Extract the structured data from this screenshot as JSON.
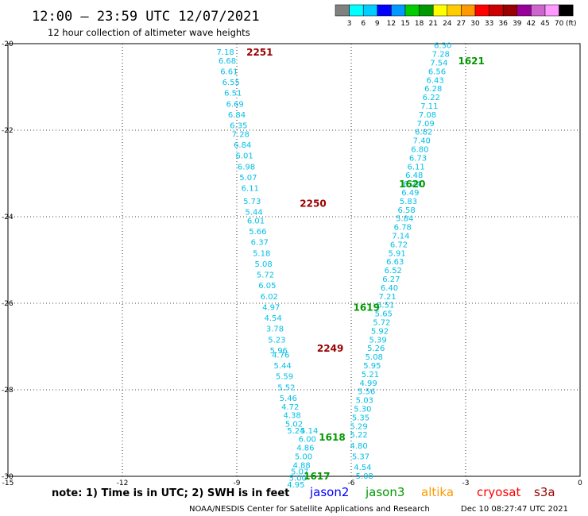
{
  "header": {
    "title": "12:00 – 23:59 UTC 12/07/2021",
    "subtitle": "12 hour collection of altimeter wave heights"
  },
  "colorbar": {
    "colors": [
      "#808080",
      "#00ffff",
      "#00ccff",
      "#0000ff",
      "#0099ff",
      "#00cc00",
      "#009900",
      "#ffff00",
      "#ffcc00",
      "#ff9900",
      "#ff0000",
      "#cc0000",
      "#990000",
      "#990099",
      "#cc66cc",
      "#ff99ff",
      "#000000"
    ],
    "ticks": [
      "3",
      "6",
      "9",
      "12",
      "15",
      "18",
      "21",
      "24",
      "27",
      "30",
      "33",
      "36",
      "39",
      "42",
      "45",
      "70"
    ],
    "unit": "(ft)"
  },
  "note": "note:  1) Time is in UTC; 2) SWH is in feet",
  "satellites": [
    {
      "name": "jason2",
      "color": "#0000ff"
    },
    {
      "name": "jason3",
      "color": "#009900"
    },
    {
      "name": "altika",
      "color": "#ff9900"
    },
    {
      "name": "cryosat",
      "color": "#ff0000"
    },
    {
      "name": "s3a",
      "color": "#990000"
    }
  ],
  "footer": {
    "left": "NOAA/NESDIS Center for Satellite Applications and Research",
    "right": "Dec 10 08:27:47 UTC 2021"
  },
  "chart_data": {
    "type": "scatter",
    "xlim": [
      -15,
      0
    ],
    "ylim": [
      -30,
      -20
    ],
    "xticks": [
      "-15",
      "-12",
      "-9",
      "-6",
      "-3",
      "0"
    ],
    "yticks": [
      "-20",
      "-22",
      "-24",
      "-26",
      "-28",
      "-30"
    ],
    "grid": true,
    "value_color": "#00bfe6",
    "tracks": [
      {
        "satellite": "s3a",
        "color": "#990000",
        "points": [
          [
            -9.3,
            -20.2,
            "7.18"
          ],
          [
            -9.25,
            -20.4,
            "6.68"
          ],
          [
            -9.2,
            -20.65,
            "6.61"
          ],
          [
            -9.15,
            -20.9,
            "6.55"
          ],
          [
            -9.1,
            -21.15,
            "6.51"
          ],
          [
            -9.05,
            -21.4,
            "6.69"
          ],
          [
            -9.0,
            -21.65,
            "6.84"
          ],
          [
            -8.95,
            -21.9,
            "6.35"
          ],
          [
            -8.9,
            -22.1,
            "7.28"
          ],
          [
            -8.85,
            -22.35,
            "6.84"
          ],
          [
            -8.8,
            -22.6,
            "6.01"
          ],
          [
            -8.75,
            -22.85,
            "6.98"
          ],
          [
            -8.7,
            -23.1,
            "5.07"
          ],
          [
            -8.65,
            -23.35,
            "6.11"
          ],
          [
            -8.6,
            -23.65,
            "5.73"
          ],
          [
            -8.55,
            -23.9,
            "5.44"
          ],
          [
            -8.5,
            -24.1,
            "6.01"
          ],
          [
            -8.45,
            -24.35,
            "5.66"
          ],
          [
            -8.4,
            -24.6,
            "6.37"
          ],
          [
            -8.35,
            -24.85,
            "5.18"
          ],
          [
            -8.3,
            -25.1,
            "5.08"
          ],
          [
            -8.25,
            -25.35,
            "5.72"
          ],
          [
            -8.2,
            -25.6,
            "6.05"
          ],
          [
            -8.15,
            -25.85,
            "6.02"
          ],
          [
            -8.1,
            -26.1,
            "4.97"
          ],
          [
            -8.05,
            -26.35,
            "4.54"
          ],
          [
            -8.0,
            -26.6,
            "3.78"
          ],
          [
            -7.95,
            -26.85,
            "5.23"
          ],
          [
            -7.9,
            -27.1,
            "5.96"
          ],
          [
            -7.85,
            -27.2,
            "4.76"
          ],
          [
            -7.8,
            -27.45,
            "5.44"
          ],
          [
            -7.75,
            -27.7,
            "5.59"
          ],
          [
            -7.7,
            -27.95,
            "5.52"
          ],
          [
            -7.65,
            -28.2,
            "5.46"
          ],
          [
            -7.6,
            -28.4,
            "4.72"
          ],
          [
            -7.55,
            -28.6,
            "4.38"
          ],
          [
            -7.5,
            -28.8,
            "5.02"
          ],
          [
            -7.45,
            -28.95,
            "5.24"
          ]
        ]
      },
      {
        "satellite": "jason3",
        "color": "#009900",
        "points": [
          [
            -3.6,
            -20.05,
            "6.30"
          ],
          [
            -3.65,
            -20.25,
            "7.28"
          ],
          [
            -3.7,
            -20.45,
            "7.54"
          ],
          [
            -3.75,
            -20.65,
            "6.56"
          ],
          [
            -3.8,
            -20.85,
            "6.43"
          ],
          [
            -3.85,
            -21.05,
            "6.28"
          ],
          [
            -3.9,
            -21.25,
            "6.22"
          ],
          [
            -3.95,
            -21.45,
            "7.11"
          ],
          [
            -4.0,
            -21.65,
            "7.08"
          ],
          [
            -4.05,
            -21.85,
            "7.09"
          ],
          [
            -4.1,
            -22.05,
            "6.82"
          ],
          [
            -4.15,
            -22.25,
            "7.40"
          ],
          [
            -4.2,
            -22.45,
            "6.80"
          ],
          [
            -4.25,
            -22.65,
            "6.73"
          ],
          [
            -4.3,
            -22.85,
            "6.11"
          ],
          [
            -4.35,
            -23.05,
            "6.48"
          ],
          [
            -4.4,
            -23.25,
            "6.24"
          ],
          [
            -4.45,
            -23.45,
            "6.49"
          ],
          [
            -4.5,
            -23.65,
            "5.83"
          ],
          [
            -4.55,
            -23.85,
            "6.58"
          ],
          [
            -4.6,
            -24.05,
            "5.84"
          ],
          [
            -4.65,
            -24.25,
            "6.78"
          ],
          [
            -4.7,
            -24.45,
            "7.14"
          ],
          [
            -4.75,
            -24.65,
            "6.72"
          ],
          [
            -4.8,
            -24.85,
            "5.91"
          ],
          [
            -4.85,
            -25.05,
            "6.63"
          ],
          [
            -4.9,
            -25.25,
            "6.52"
          ],
          [
            -4.95,
            -25.45,
            "6.27"
          ],
          [
            -5.0,
            -25.65,
            "6.40"
          ],
          [
            -5.05,
            -25.85,
            "7.21"
          ],
          [
            -5.1,
            -26.05,
            "6.51"
          ],
          [
            -5.15,
            -26.25,
            "5.65"
          ],
          [
            -5.2,
            -26.45,
            "5.72"
          ],
          [
            -5.25,
            -26.65,
            "5.92"
          ],
          [
            -5.3,
            -26.85,
            "5.39"
          ],
          [
            -5.35,
            -27.05,
            "5.26"
          ],
          [
            -5.4,
            -27.25,
            "5.08"
          ],
          [
            -5.45,
            -27.45,
            "5.95"
          ],
          [
            -5.5,
            -27.65,
            "5.21"
          ],
          [
            -5.55,
            -27.85,
            "4.99"
          ],
          [
            -5.6,
            -28.05,
            "5.56"
          ],
          [
            -5.65,
            -28.25,
            "5.03"
          ],
          [
            -5.7,
            -28.45,
            "5.30"
          ],
          [
            -5.75,
            -28.65,
            "5.35"
          ],
          [
            -5.8,
            -28.85,
            "5.29"
          ],
          [
            -5.8,
            -29.05,
            "5.22"
          ],
          [
            -5.8,
            -29.3,
            "4.80"
          ],
          [
            -5.75,
            -29.55,
            "5.37"
          ],
          [
            -5.7,
            -29.8,
            "4.54"
          ],
          [
            -5.65,
            -30.0,
            "5.08"
          ]
        ]
      },
      {
        "satellite": "jason3",
        "color": "#009900",
        "points": [
          [
            -7.1,
            -28.95,
            "5.14"
          ],
          [
            -7.15,
            -29.15,
            "6.00"
          ],
          [
            -7.2,
            -29.35,
            "4.86"
          ],
          [
            -7.25,
            -29.55,
            "5.00"
          ],
          [
            -7.3,
            -29.75,
            "4.88"
          ],
          [
            -7.35,
            -29.9,
            "5.07"
          ],
          [
            -7.4,
            -30.05,
            "5.00"
          ],
          [
            -7.45,
            -30.2,
            "4.95"
          ]
        ]
      }
    ],
    "pass_labels": [
      {
        "text": "2251",
        "x": -8.4,
        "y": -20.2,
        "color": "#990000"
      },
      {
        "text": "2250",
        "x": -7.0,
        "y": -23.7,
        "color": "#990000"
      },
      {
        "text": "2249",
        "x": -6.55,
        "y": -27.05,
        "color": "#990000"
      },
      {
        "text": "1621",
        "x": -2.85,
        "y": -20.4,
        "color": "#009900"
      },
      {
        "text": "1620",
        "x": -4.4,
        "y": -23.25,
        "color": "#009900"
      },
      {
        "text": "1619",
        "x": -5.6,
        "y": -26.1,
        "color": "#009900"
      },
      {
        "text": "1618",
        "x": -6.5,
        "y": -29.1,
        "color": "#009900"
      },
      {
        "text": "1617",
        "x": -6.9,
        "y": -30.0,
        "color": "#009900"
      }
    ]
  }
}
